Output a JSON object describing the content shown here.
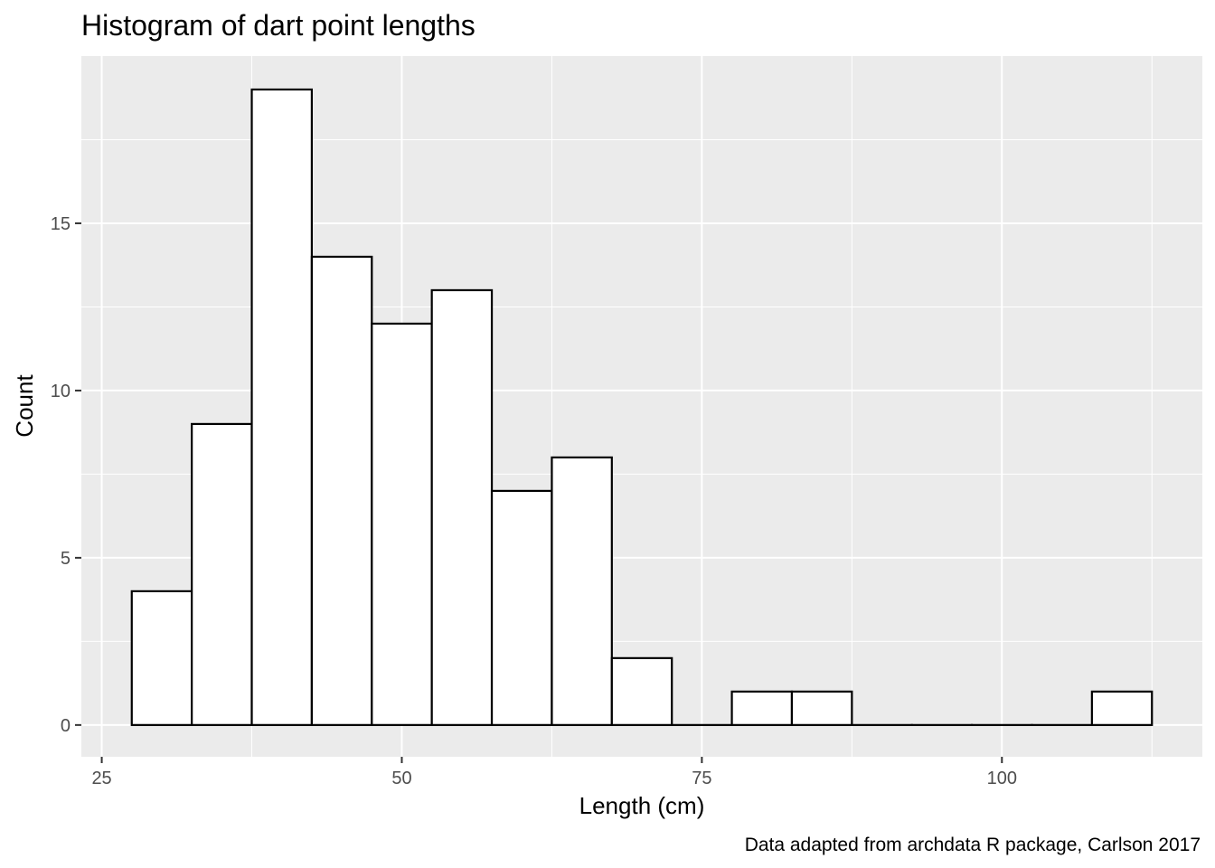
{
  "chart_data": {
    "type": "bar",
    "title": "Histogram of dart point lengths",
    "xlabel": "Length (cm)",
    "ylabel": "Count",
    "caption": "Data adapted from archdata R package, Carlson 2017",
    "bin_width": 5,
    "bins": [
      {
        "start": 27.5,
        "end": 32.5,
        "count": 4
      },
      {
        "start": 32.5,
        "end": 37.5,
        "count": 9
      },
      {
        "start": 37.5,
        "end": 42.5,
        "count": 19
      },
      {
        "start": 42.5,
        "end": 47.5,
        "count": 14
      },
      {
        "start": 47.5,
        "end": 52.5,
        "count": 12
      },
      {
        "start": 52.5,
        "end": 57.5,
        "count": 13
      },
      {
        "start": 57.5,
        "end": 62.5,
        "count": 7
      },
      {
        "start": 62.5,
        "end": 67.5,
        "count": 8
      },
      {
        "start": 67.5,
        "end": 72.5,
        "count": 2
      },
      {
        "start": 72.5,
        "end": 77.5,
        "count": 0
      },
      {
        "start": 77.5,
        "end": 82.5,
        "count": 1
      },
      {
        "start": 82.5,
        "end": 87.5,
        "count": 1
      },
      {
        "start": 87.5,
        "end": 92.5,
        "count": 0
      },
      {
        "start": 92.5,
        "end": 97.5,
        "count": 0
      },
      {
        "start": 97.5,
        "end": 102.5,
        "count": 0
      },
      {
        "start": 102.5,
        "end": 107.5,
        "count": 0
      },
      {
        "start": 107.5,
        "end": 112.5,
        "count": 1
      }
    ],
    "xlim": [
      23.3,
      116.7
    ],
    "ylim": [
      -0.95,
      20
    ],
    "x_ticks": [
      25,
      50,
      75,
      100
    ],
    "y_ticks": [
      0,
      5,
      10,
      15
    ],
    "grid": true,
    "legend": "none",
    "colors": {
      "panel_background": "#ebebeb",
      "grid": "#ffffff",
      "bar_fill": "#ffffff",
      "bar_outline": "#000000",
      "tick_label": "#4d4d4d",
      "tick_mark": "#333333"
    }
  }
}
